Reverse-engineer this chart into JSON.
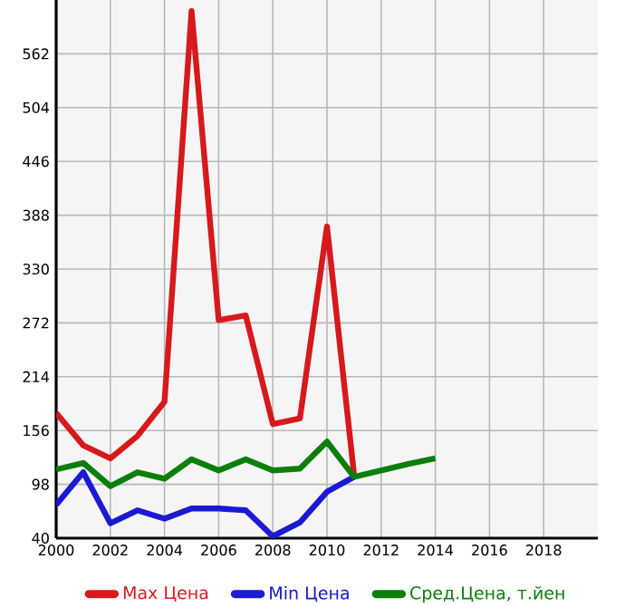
{
  "chart_data": {
    "type": "line",
    "x": [
      2000,
      2001,
      2002,
      2003,
      2004,
      2005,
      2006,
      2007,
      2008,
      2009,
      2010,
      2011,
      2012,
      2013,
      2014
    ],
    "series": [
      {
        "name": "Max Цена",
        "color": "#d7191c",
        "values": [
          175,
          140,
          126,
          150,
          187,
          608,
          275,
          280,
          163,
          169,
          376,
          108,
          null,
          null,
          null
        ]
      },
      {
        "name": "Min Цена",
        "color": "#1a1ad4",
        "values": [
          76,
          111,
          56,
          70,
          61,
          72,
          72,
          70,
          42,
          57,
          90,
          106,
          null,
          null,
          null
        ]
      },
      {
        "name": "Сред.Цена, т.йен",
        "color": "#0b7f0b",
        "values": [
          114,
          121,
          96,
          111,
          104,
          125,
          113,
          125,
          113,
          115,
          144,
          106,
          113,
          120,
          126
        ]
      }
    ],
    "xlim": [
      2000,
      2020
    ],
    "xticks": [
      2000,
      2002,
      2004,
      2006,
      2008,
      2010,
      2012,
      2014,
      2016,
      2018
    ],
    "ylim": [
      40,
      620
    ],
    "yticks": [
      40,
      98,
      156,
      214,
      272,
      330,
      388,
      446,
      504,
      562
    ],
    "grid": true,
    "legend": "bottom"
  }
}
